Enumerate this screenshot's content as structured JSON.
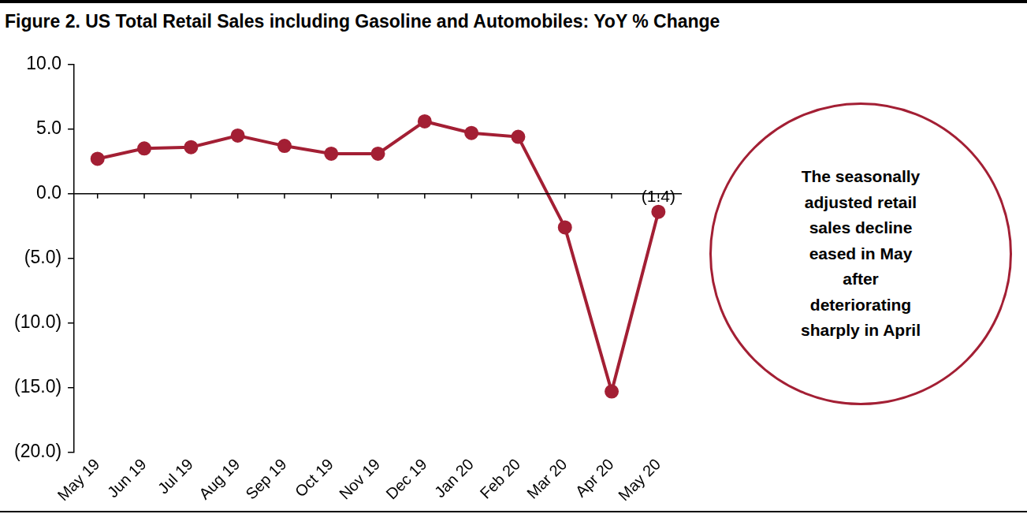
{
  "chart_data": {
    "type": "line",
    "title": "Figure 2. US Total Retail Sales including Gasoline and Automobiles: YoY % Change",
    "annotation": "The seasonally adjusted retail sales decline eased in May after deteriorating sharply in April",
    "categories": [
      "May 19",
      "Jun 19",
      "Jul 19",
      "Aug 19",
      "Sep 19",
      "Oct 19",
      "Nov 19",
      "Dec 19",
      "Jan 20",
      "Feb 20",
      "Mar 20",
      "Apr 20",
      "May 20"
    ],
    "values": [
      2.7,
      3.5,
      3.6,
      4.5,
      3.7,
      3.1,
      3.1,
      5.6,
      4.7,
      4.4,
      -2.6,
      -15.3,
      -1.4
    ],
    "value_labels": [
      null,
      null,
      null,
      null,
      null,
      null,
      null,
      null,
      null,
      null,
      null,
      null,
      "(1.4)"
    ],
    "data_labels": true,
    "color": "#a31f34",
    "marker": "circle",
    "ylim": [
      -20,
      10
    ],
    "yticks": [
      {
        "value": 10,
        "label": "10.0"
      },
      {
        "value": 5,
        "label": "5.0"
      },
      {
        "value": 0,
        "label": "0.0"
      },
      {
        "value": -5,
        "label": "(5.0)"
      },
      {
        "value": -10,
        "label": "(10.0)"
      },
      {
        "value": -15,
        "label": "(15.0)"
      },
      {
        "value": -20,
        "label": "(20.0)"
      }
    ],
    "grid": false
  }
}
